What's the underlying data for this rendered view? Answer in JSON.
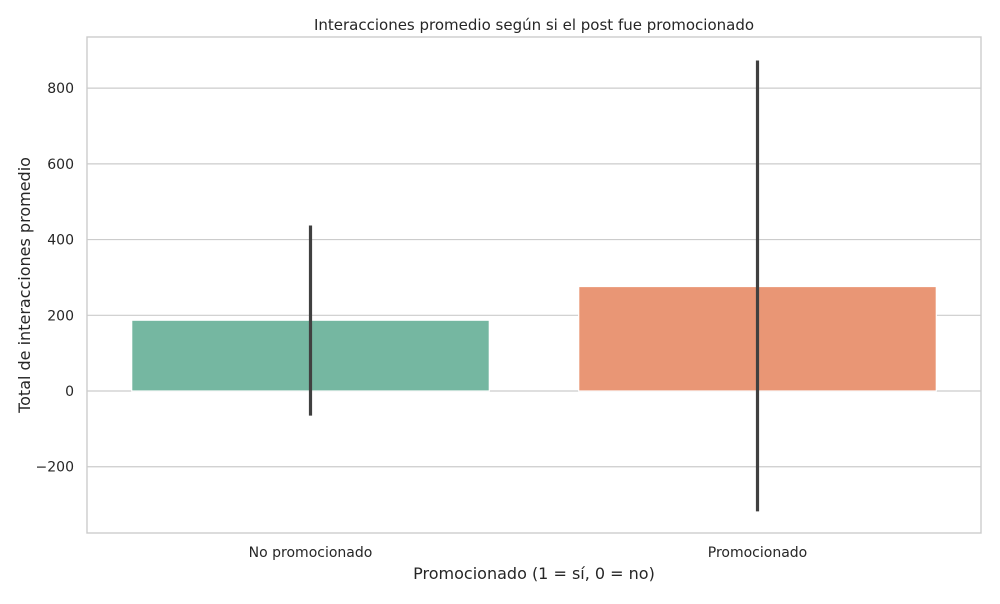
{
  "chart_data": {
    "type": "bar",
    "title": "Interacciones promedio según si el post fue promocionado",
    "xlabel": "Promocionado (1 = sí, 0 = no)",
    "ylabel": "Total de interacciones promedio",
    "categories": [
      "No promocionado",
      "Promocionado"
    ],
    "values": [
      187,
      276
    ],
    "error_bars": [
      {
        "low": -65,
        "high": 437
      },
      {
        "low": -318,
        "high": 873
      }
    ],
    "colors": [
      "#75b7a1",
      "#e99675"
    ],
    "ylim": [
      -375,
      935
    ],
    "yticks": [
      -200,
      0,
      200,
      400,
      600,
      800
    ],
    "ytick_labels": [
      "−200",
      "0",
      "200",
      "400",
      "600",
      "800"
    ],
    "grid": true,
    "legend": "none"
  }
}
